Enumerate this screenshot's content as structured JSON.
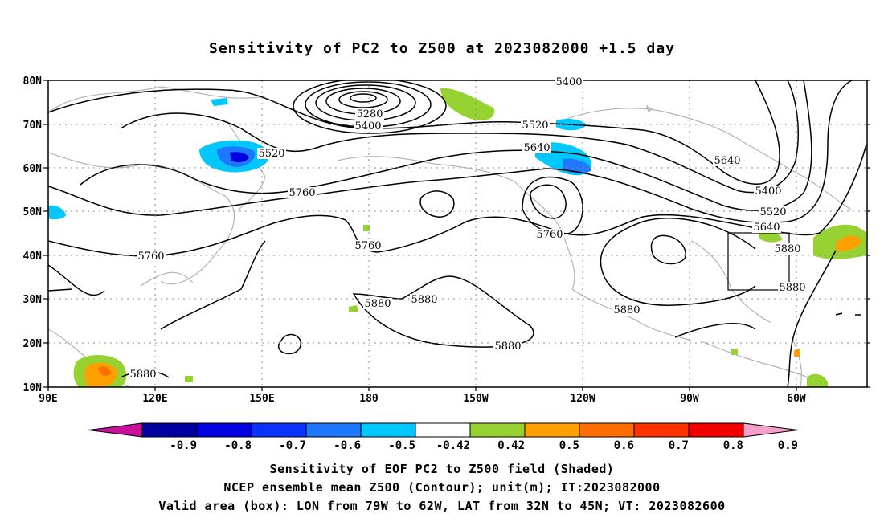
{
  "title": "Sensitivity of PC2 to Z500 at 2023082000 +1.5 day",
  "map": {
    "lat_labels": [
      "80N",
      "70N",
      "60N",
      "50N",
      "40N",
      "30N",
      "20N",
      "10N"
    ],
    "lon_labels": [
      "90E",
      "120E",
      "150E",
      "180",
      "150W",
      "120W",
      "90W",
      "60W"
    ],
    "contour_labels": [
      "5400",
      "5280",
      "5400",
      "5520",
      "5520",
      "5640",
      "5640",
      "5400",
      "5520",
      "5640",
      "5760",
      "5760",
      "5760",
      "5760",
      "5880",
      "5880",
      "5880",
      "5880",
      "5880",
      "5880",
      "5880"
    ],
    "valid_box": {
      "lon_min": -79,
      "lon_max": -62,
      "lat_min": 32,
      "lat_max": 45
    }
  },
  "colorbar": {
    "ticks": [
      "-0.9",
      "-0.8",
      "-0.7",
      "-0.6",
      "-0.5",
      "-0.42",
      "0.42",
      "0.5",
      "0.6",
      "0.7",
      "0.8",
      "0.9"
    ],
    "colors": [
      "#0000a0",
      "#0000e0",
      "#0a32ff",
      "#1e78ff",
      "#00c8ff",
      "#ffffff",
      "#96d232",
      "#ffa000",
      "#ff6e00",
      "#ff3200",
      "#f00000"
    ],
    "low_end_color": "#c8109a",
    "high_end_color": "#f4a0c8"
  },
  "captions": [
    "Sensitivity of EOF PC2 to Z500 field (Shaded)",
    "NCEP ensemble mean Z500 (Contour); unit(m); IT:2023082000",
    "Valid area (box): LON from 79W to 62W, LAT from 32N to 45N; VT: 2023082600"
  ]
}
